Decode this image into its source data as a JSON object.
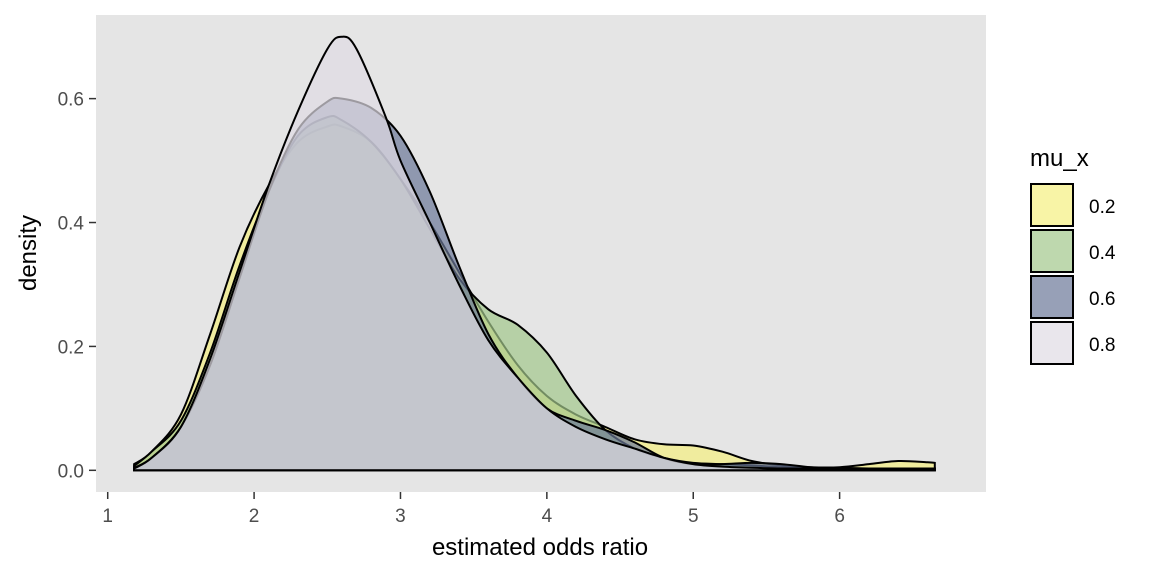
{
  "chart_data": {
    "type": "area",
    "xlabel": "estimated odds ratio",
    "ylabel": "density",
    "xlim": [
      0.92,
      7.0
    ],
    "ylim": [
      -0.035,
      0.735
    ],
    "xticks": [
      1,
      2,
      3,
      4,
      5,
      6
    ],
    "yticks": [
      0.0,
      0.2,
      0.4,
      0.6
    ],
    "ytick_labels": [
      "0.0",
      "0.2",
      "0.4",
      "0.6"
    ],
    "grid": false,
    "panel_background": "#e5e5e5",
    "legend": {
      "title": "mu_x",
      "position": "right"
    },
    "series": [
      {
        "name": "0.2",
        "color": "#f5ef80",
        "x": [
          1.18,
          1.3,
          1.5,
          1.7,
          1.9,
          2.1,
          2.3,
          2.5,
          2.6,
          2.8,
          3.0,
          3.2,
          3.4,
          3.6,
          3.8,
          4.0,
          4.2,
          4.4,
          4.6,
          4.8,
          5.0,
          5.2,
          5.4,
          5.6,
          5.8,
          6.0,
          6.2,
          6.4,
          6.6,
          6.65
        ],
        "y": [
          0.01,
          0.03,
          0.09,
          0.22,
          0.36,
          0.46,
          0.53,
          0.555,
          0.555,
          0.53,
          0.47,
          0.4,
          0.32,
          0.24,
          0.17,
          0.12,
          0.09,
          0.07,
          0.05,
          0.042,
          0.04,
          0.03,
          0.015,
          0.008,
          0.005,
          0.005,
          0.01,
          0.015,
          0.013,
          0.012
        ]
      },
      {
        "name": "0.4",
        "color": "#a2c88c",
        "x": [
          1.18,
          1.3,
          1.5,
          1.7,
          1.9,
          2.1,
          2.3,
          2.5,
          2.6,
          2.8,
          3.0,
          3.2,
          3.4,
          3.6,
          3.8,
          4.0,
          4.2,
          4.4,
          4.6,
          4.8,
          5.0,
          5.2,
          5.4,
          5.6,
          5.8,
          6.0,
          6.2,
          6.4,
          6.6,
          6.65
        ],
        "y": [
          0.007,
          0.03,
          0.08,
          0.19,
          0.33,
          0.45,
          0.54,
          0.57,
          0.565,
          0.53,
          0.47,
          0.39,
          0.31,
          0.26,
          0.235,
          0.19,
          0.12,
          0.065,
          0.035,
          0.02,
          0.012,
          0.01,
          0.008,
          0.005,
          0.004,
          0.004,
          0.003,
          0.003,
          0.003,
          0.003
        ]
      },
      {
        "name": "0.6",
        "color": "#6b7898",
        "x": [
          1.18,
          1.3,
          1.5,
          1.7,
          1.9,
          2.1,
          2.3,
          2.5,
          2.6,
          2.8,
          3.0,
          3.2,
          3.4,
          3.6,
          3.8,
          4.0,
          4.2,
          4.4,
          4.6,
          4.8,
          5.0,
          5.2,
          5.4,
          5.6,
          5.8,
          6.0,
          6.2,
          6.4,
          6.6,
          6.65
        ],
        "y": [
          0.004,
          0.02,
          0.07,
          0.17,
          0.31,
          0.45,
          0.55,
          0.595,
          0.6,
          0.585,
          0.54,
          0.45,
          0.33,
          0.22,
          0.15,
          0.1,
          0.08,
          0.065,
          0.045,
          0.02,
          0.01,
          0.01,
          0.012,
          0.01,
          0.005,
          0.003,
          0.003,
          0.003,
          0.003,
          0.003
        ]
      },
      {
        "name": "0.8",
        "color": "#dfdce4",
        "x": [
          1.18,
          1.3,
          1.5,
          1.7,
          1.9,
          2.1,
          2.3,
          2.5,
          2.6,
          2.7,
          2.9,
          3.0,
          3.2,
          3.4,
          3.6,
          3.8,
          4.0,
          4.2,
          4.4,
          4.6,
          4.8,
          5.0,
          5.2,
          5.4,
          5.6,
          5.8,
          6.0,
          6.2,
          6.4,
          6.65
        ],
        "y": [
          0.003,
          0.02,
          0.07,
          0.18,
          0.32,
          0.46,
          0.58,
          0.68,
          0.7,
          0.68,
          0.57,
          0.5,
          0.4,
          0.3,
          0.21,
          0.15,
          0.1,
          0.07,
          0.05,
          0.035,
          0.02,
          0.01,
          0.006,
          0.004,
          0.003,
          0.003,
          0.003,
          0.003,
          0.003,
          0.003
        ]
      }
    ]
  }
}
